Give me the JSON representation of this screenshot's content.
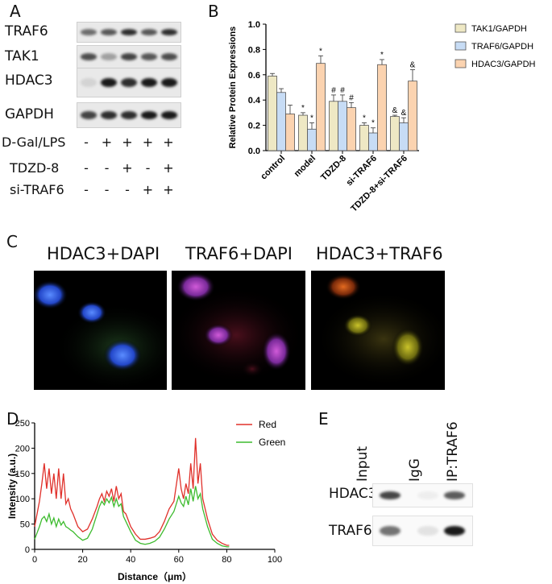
{
  "panels": {
    "a": "A",
    "b": "B",
    "c": "C",
    "d": "D",
    "e": "E"
  },
  "panelA": {
    "blots": [
      {
        "label": "TRAF6",
        "bands": [
          0.6,
          0.7,
          0.9,
          0.7,
          0.9
        ]
      },
      {
        "label": "TAK1",
        "bands": [
          0.75,
          0.35,
          0.8,
          0.7,
          0.75
        ]
      },
      {
        "label": "HDAC3",
        "bands": [
          0.1,
          1.0,
          0.9,
          1.0,
          1.0
        ]
      },
      {
        "label": "GAPDH",
        "bands": [
          0.8,
          0.9,
          0.9,
          1.0,
          1.0
        ]
      }
    ],
    "treatments": [
      {
        "label": "D-Gal/LPS",
        "signs": [
          "-",
          "+",
          "+",
          "+",
          "+"
        ]
      },
      {
        "label": "TDZD-8",
        "signs": [
          "-",
          "-",
          "+",
          "-",
          "+"
        ]
      },
      {
        "label": "si-TRAF6",
        "signs": [
          "-",
          "-",
          "-",
          "+",
          "+"
        ]
      }
    ]
  },
  "chart_data": [
    {
      "type": "bar",
      "ylabel": "Relative Protein Expressions",
      "xlabel": "",
      "ylim": [
        0,
        1.0
      ],
      "yticks": [
        "0.0",
        "0.2",
        "0.4",
        "0.6",
        "0.8",
        "1.0"
      ],
      "categories": [
        "control",
        "model",
        "TDZD-8",
        "si-TRAF6",
        "TDZD-8+si-TRAF6"
      ],
      "series": [
        {
          "name": "TAK1/GAPDH",
          "color": "#eee8c4",
          "values": [
            0.59,
            0.28,
            0.39,
            0.2,
            0.27
          ],
          "errors": [
            0.02,
            0.02,
            0.05,
            0.02,
            0.01
          ],
          "marks": [
            "",
            "*",
            "#",
            "*",
            "&"
          ]
        },
        {
          "name": "TRAF6/GAPDH",
          "color": "#c7dcf5",
          "values": [
            0.46,
            0.17,
            0.39,
            0.14,
            0.22
          ],
          "errors": [
            0.03,
            0.05,
            0.05,
            0.04,
            0.04
          ],
          "marks": [
            "",
            "*",
            "#",
            "*",
            "&"
          ]
        },
        {
          "name": "HDAC3/GAPDH",
          "color": "#fbd3b0",
          "values": [
            0.29,
            0.69,
            0.34,
            0.68,
            0.55
          ],
          "errors": [
            0.07,
            0.06,
            0.04,
            0.04,
            0.09
          ],
          "marks": [
            "",
            "*",
            "#",
            "*",
            "&"
          ]
        }
      ],
      "legend": "top-right",
      "grid": false
    },
    {
      "type": "line",
      "xlabel": "Distance（μm）",
      "ylabel": "Intensity (a.u.)",
      "xlim": [
        0,
        100
      ],
      "ylim": [
        0,
        250
      ],
      "xticks": [
        "0",
        "20",
        "40",
        "60",
        "80",
        "100"
      ],
      "yticks": [
        "0",
        "50",
        "100",
        "150",
        "200",
        "250"
      ],
      "series": [
        {
          "name": "Red",
          "color": "#e0302a",
          "x": [
            0,
            2,
            3,
            4,
            5,
            6,
            7,
            8,
            9,
            10,
            11,
            12,
            13,
            14,
            15,
            16,
            18,
            20,
            22,
            24,
            26,
            27,
            28,
            29,
            30,
            31,
            32,
            33,
            34,
            35,
            36,
            37,
            38,
            40,
            42,
            44,
            46,
            48,
            50,
            52,
            54,
            56,
            58,
            60,
            61,
            62,
            63,
            64,
            65,
            66,
            67,
            68,
            69,
            70,
            72,
            74,
            76,
            78,
            80,
            81
          ],
          "y": [
            45,
            95,
            130,
            170,
            120,
            160,
            110,
            150,
            100,
            160,
            100,
            150,
            90,
            100,
            80,
            70,
            45,
            35,
            40,
            60,
            85,
            100,
            110,
            95,
            115,
            105,
            120,
            95,
            125,
            100,
            110,
            75,
            70,
            45,
            30,
            20,
            20,
            22,
            25,
            35,
            55,
            80,
            95,
            160,
            120,
            100,
            130,
            110,
            170,
            120,
            220,
            130,
            170,
            100,
            60,
            30,
            18,
            12,
            8,
            8
          ]
        },
        {
          "name": "Green",
          "color": "#3dbb2e",
          "x": [
            0,
            2,
            3,
            4,
            5,
            6,
            7,
            8,
            9,
            10,
            11,
            12,
            13,
            14,
            15,
            16,
            18,
            20,
            22,
            24,
            26,
            27,
            28,
            29,
            30,
            31,
            32,
            33,
            34,
            35,
            36,
            37,
            38,
            40,
            42,
            44,
            46,
            48,
            50,
            52,
            54,
            56,
            58,
            60,
            61,
            62,
            63,
            64,
            65,
            66,
            67,
            68,
            69,
            70,
            72,
            74,
            76,
            78,
            80,
            81
          ],
          "y": [
            20,
            45,
            60,
            65,
            55,
            70,
            50,
            62,
            45,
            60,
            48,
            55,
            45,
            42,
            38,
            35,
            25,
            18,
            22,
            40,
            70,
            85,
            95,
            88,
            100,
            92,
            103,
            85,
            100,
            85,
            90,
            65,
            55,
            35,
            18,
            12,
            10,
            12,
            16,
            24,
            40,
            60,
            75,
            105,
            92,
            85,
            105,
            88,
            120,
            95,
            125,
            100,
            110,
            80,
            45,
            20,
            12,
            7,
            5,
            5
          ]
        }
      ],
      "legend": "top-right",
      "grid": false
    }
  ],
  "panelC": {
    "titles": [
      "HDAC3+DAPI",
      "TRAF6+DAPI",
      "HDAC3+TRAF6"
    ]
  },
  "panelE": {
    "lanes": [
      "Input",
      "IgG",
      "IP:TRAF6"
    ],
    "rows": [
      {
        "label": "HDAC3",
        "bands": [
          0.8,
          0.05,
          0.7
        ]
      },
      {
        "label": "TRAF6",
        "bands": [
          0.6,
          0.1,
          1.0
        ]
      }
    ]
  }
}
